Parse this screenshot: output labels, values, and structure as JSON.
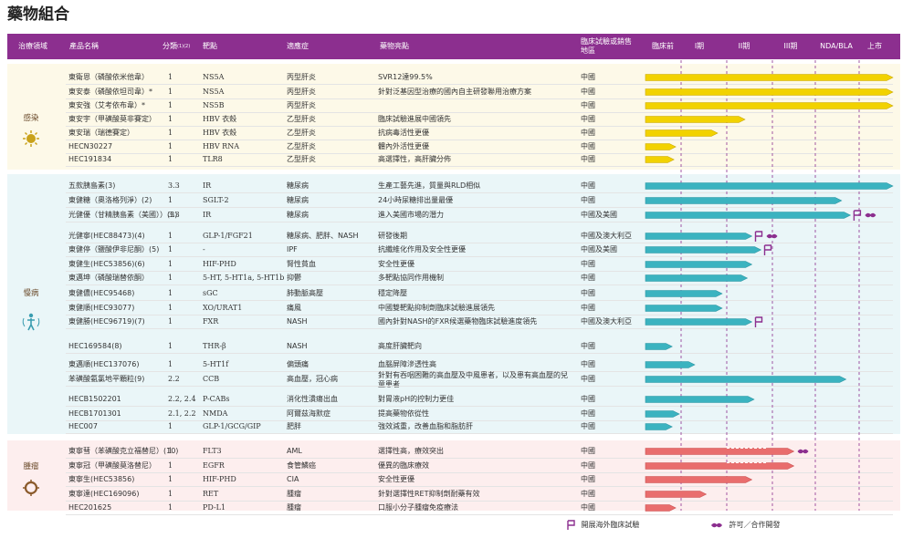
{
  "page_title": "藥物組合",
  "header": {
    "area": "治療領域",
    "product": "產品名稱",
    "category": "分類",
    "category_note": "(1)(2)",
    "target": "靶點",
    "indication": "適應症",
    "highlights": "藥物亮點",
    "region": "臨床試驗或銷售地區",
    "phases": [
      "臨床前",
      "I期",
      "II期",
      "III期",
      "NDA/BLA",
      "上市"
    ]
  },
  "colors": {
    "header_bg": "#8c2f8f",
    "infection_band": "#fdf9e8",
    "infection_bar": "#f2d200",
    "chronic_band": "#eaf6f8",
    "chronic_bar": "#3bb3c0",
    "oncology_band": "#fdeeee",
    "oncology_bar": "#e96d6d",
    "marker": "#8c2f8f"
  },
  "groups": [
    {
      "area": "感染",
      "icon": "virus-icon",
      "rows": [
        {
          "name": "東衛恩（磷酸依米他韋）",
          "cat": "1",
          "target": "NS5A",
          "ind": "丙型肝炎",
          "hl": "SVR12達99.5%",
          "region": "中國",
          "stage": 6.0,
          "dashed": false,
          "markers": []
        },
        {
          "name": "東安泰（磷酸依坦司韋）*",
          "cat": "1",
          "target": "NS5A",
          "ind": "丙型肝炎",
          "hl": "針對泛基因型治療的國內自主研發聯用治療方案",
          "region": "中國",
          "stage": 6.0,
          "dashed": false,
          "markers": []
        },
        {
          "name": "東安強（艾考依布韋）*",
          "cat": "1",
          "target": "NS5B",
          "ind": "丙型肝炎",
          "hl": "",
          "region": "中國",
          "stage": 6.0,
          "dashed": false,
          "markers": []
        },
        {
          "name": "東安宇（甲磺酸莫非賽定）",
          "cat": "1",
          "target": "HBV 衣殼",
          "ind": "乙型肝炎",
          "hl": "臨床試驗進展中國領先",
          "region": "中國",
          "stage": 2.4,
          "dashed": false,
          "markers": []
        },
        {
          "name": "東安瑞（瑞德賽定）",
          "cat": "1",
          "target": "HBV 衣殼",
          "ind": "乙型肝炎",
          "hl": "抗病毒活性更優",
          "region": "中國",
          "stage": 1.8,
          "dashed": false,
          "markers": []
        },
        {
          "name": "HECN30227",
          "cat": "1",
          "target": "HBV RNA",
          "ind": "乙型肝炎",
          "hl": "體內外活性更優",
          "region": "中國",
          "stage": 0.85,
          "dashed": false,
          "markers": []
        },
        {
          "name": "HEC191834",
          "cat": "1",
          "target": "TLR8",
          "ind": "乙型肝炎",
          "hl": "高選擇性，高肝臟分佈",
          "region": "中國",
          "stage": 0.8,
          "dashed": false,
          "markers": []
        }
      ]
    },
    {
      "area": "慢病",
      "icon": "human-body-icon",
      "rows": [
        {
          "name": "五款胰島素(3)",
          "cat": "3.3",
          "target": "IR",
          "ind": "糖尿病",
          "hl": "生產工藝先進，質量與RLD相似",
          "region": "中國",
          "stage": 6.0,
          "dashed": false,
          "markers": []
        },
        {
          "name": "東健糖（奧洛格列淨）(2)",
          "cat": "1",
          "target": "SGLT-2",
          "ind": "糖尿病",
          "hl": "24小時尿糖排出量最優",
          "region": "中國",
          "stage": 4.6,
          "dashed": false,
          "markers": []
        },
        {
          "name": "光健優（甘精胰島素（美國））(3)",
          "cat": "3.3",
          "target": "IR",
          "ind": "糖尿病",
          "hl": "進入美國市場的潛力",
          "region": "中國及美國",
          "stage": 4.8,
          "dashed": false,
          "markers": [
            "flag-icon",
            "handshake-icon"
          ]
        },
        {
          "name": "光健寧(HEC88473)(4)",
          "cat": "1",
          "target": "GLP-1/FGF21",
          "ind": "糖尿病、肥胖、NASH",
          "hl": "研發後期",
          "region": "中國及澳大利亞",
          "stage": 2.55,
          "dashed": false,
          "markers": [
            "flag-icon",
            "handshake-icon"
          ]
        },
        {
          "name": "東健停（鹽酸伊非尼酮）(5)",
          "cat": "1",
          "target": "-",
          "ind": "IPF",
          "hl": "抗纖維化作用及安全性更優",
          "region": "中國及美國",
          "stage": 2.75,
          "dashed": false,
          "markers": [
            "flag-icon"
          ]
        },
        {
          "name": "東健生(HEC53856)(6)",
          "cat": "1",
          "target": "HIF-PHD",
          "ind": "腎性貧血",
          "hl": "安全性更優",
          "region": "中國",
          "stage": 2.55,
          "dashed": false,
          "markers": []
        },
        {
          "name": "東邁坤（磷酸瑞替依酮）",
          "cat": "1",
          "target": "5-HT, 5-HT1a, 5-HT1b",
          "ind": "抑鬱",
          "hl": "多靶點協同作用機制",
          "region": "中國",
          "stage": 2.45,
          "dashed": false,
          "markers": []
        },
        {
          "name": "東健儂(HEC95468)",
          "cat": "1",
          "target": "sGC",
          "ind": "肺動脈高壓",
          "hl": "穩定降壓",
          "region": "中國",
          "stage": 1.9,
          "dashed": false,
          "markers": []
        },
        {
          "name": "東健順(HEC93077)",
          "cat": "1",
          "target": "XO/URAT1",
          "ind": "痛風",
          "hl": "中國雙靶點抑制劑臨床試驗進展領先",
          "region": "中國",
          "stage": 1.9,
          "dashed": false,
          "markers": []
        },
        {
          "name": "東健勝(HEC96719)(7)",
          "cat": "1",
          "target": "FXR",
          "ind": "NASH",
          "hl": "國內針對NASH的FXR候選藥物臨床試驗進度領先",
          "region": "中國及澳大利亞",
          "stage": 2.55,
          "dashed": false,
          "markers": [
            "flag-icon"
          ]
        },
        {
          "name": "HEC169584(8)",
          "cat": "1",
          "target": "THR-β",
          "ind": "NASH",
          "hl": "高度肝臟靶向",
          "region": "中國",
          "stage": 0.75,
          "dashed": false,
          "markers": []
        },
        {
          "name": "東邁順(HEC137076)",
          "cat": "1",
          "target": "5-HT1f",
          "ind": "偏頭痛",
          "hl": "血腦屏障滲透性高",
          "region": "中國",
          "stage": 1.3,
          "dashed": false,
          "markers": []
        },
        {
          "name": "苯磺酸氨氯地平顆粒(9)",
          "cat": "2.2",
          "target": "CCB",
          "ind": "高血壓，冠心病",
          "hl": "針對有吞咽困難的高血壓及中風患者，以及患有高血壓的兒童患者",
          "region": "中國",
          "stage": 4.7,
          "dashed": false,
          "markers": []
        },
        {
          "name": "HECB1502201",
          "cat": "2.2, 2.4",
          "target": "P-CABs",
          "ind": "消化性潰瘍出血",
          "hl": "對胃液pH的控制力更佳",
          "region": "中國",
          "stage": 2.6,
          "dashed": false,
          "markers": []
        },
        {
          "name": "HECB1701301",
          "cat": "2.1, 2.2",
          "target": "NMDA",
          "ind": "阿爾茲海默症",
          "hl": "提高藥物依從性",
          "region": "中國",
          "stage": 0.95,
          "dashed": false,
          "markers": []
        },
        {
          "name": "HEC007",
          "cat": "1",
          "target": "GLP-1/GCG/GIP",
          "ind": "肥胖",
          "hl": "強效減重，改善血脂和脂肪肝",
          "region": "中國",
          "stage": 0.75,
          "dashed": false,
          "markers": []
        }
      ]
    },
    {
      "area": "腫瘤",
      "icon": "tumor-icon",
      "rows": [
        {
          "name": "東寧彗（苯磺酸克立福替尼）(10)",
          "cat": "1",
          "target": "FLT3",
          "ind": "AML",
          "hl": "選擇性高，療效突出",
          "region": "中國",
          "stage": 3.5,
          "dashed": true,
          "markers": [
            "handshake-icon"
          ]
        },
        {
          "name": "東寧冠（甲磺酸莫洛替尼）",
          "cat": "1",
          "target": "EGFR",
          "ind": "食管鱗癌",
          "hl": "優異的臨床療效",
          "region": "中國",
          "stage": 3.5,
          "dashed": true,
          "markers": []
        },
        {
          "name": "東寧生(HEC53856)",
          "cat": "1",
          "target": "HIF-PHD",
          "ind": "CIA",
          "hl": "安全性更優",
          "region": "中國",
          "stage": 2.55,
          "dashed": false,
          "markers": []
        },
        {
          "name": "東寧達(HEC169096)",
          "cat": "1",
          "target": "RET",
          "ind": "腫瘤",
          "hl": "針對選擇性RET抑制劑耐藥有效",
          "region": "中國",
          "stage": 1.55,
          "dashed": false,
          "markers": []
        },
        {
          "name": "HEC201625",
          "cat": "1",
          "target": "PD-L1",
          "ind": "腫瘤",
          "hl": "口服小分子腫瘤免疫療法",
          "region": "中國",
          "stage": 0.85,
          "dashed": false,
          "markers": []
        }
      ]
    }
  ],
  "legend": {
    "overseas": "開展海外臨床試驗",
    "license": "許可／合作開發"
  }
}
